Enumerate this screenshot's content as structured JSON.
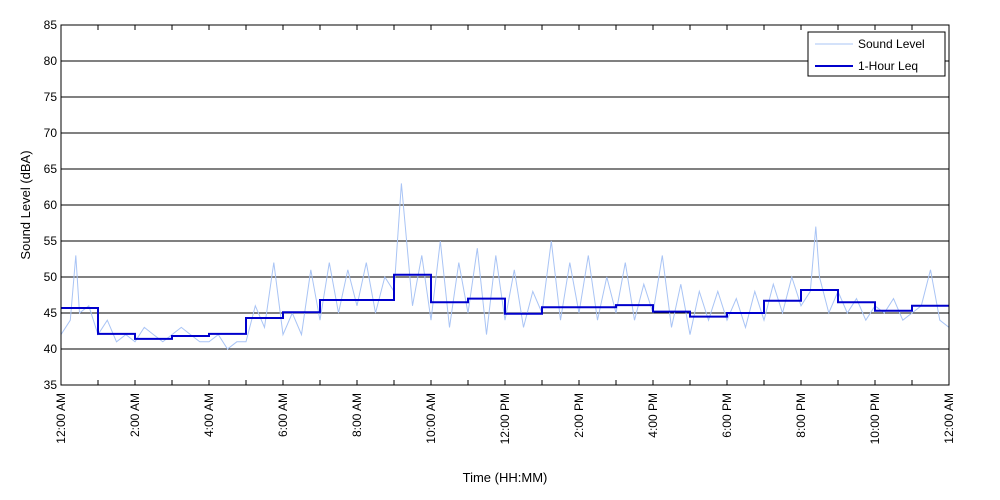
{
  "chart_data": {
    "type": "line",
    "xlabel": "Time (HH:MM)",
    "ylabel": "Sound Level (dBA)",
    "ylim": [
      35,
      85
    ],
    "yticks": [
      35,
      40,
      45,
      50,
      55,
      60,
      65,
      70,
      75,
      80,
      85
    ],
    "xlim": [
      0,
      24
    ],
    "x_tick_labels": [
      "12:00 AM",
      "2:00 AM",
      "4:00 AM",
      "6:00 AM",
      "8:00 AM",
      "10:00 AM",
      "12:00 PM",
      "2:00 PM",
      "4:00 PM",
      "6:00 PM",
      "8:00 PM",
      "10:00 PM",
      "12:00 AM"
    ],
    "grid": "horizontal",
    "legend_position": "top-right",
    "series": [
      {
        "name": "Sound Level",
        "style": "thin line",
        "color": "#a9c4f5",
        "x_hours": [
          0,
          0.25,
          0.4,
          0.5,
          0.75,
          1,
          1.25,
          1.5,
          1.75,
          2,
          2.25,
          2.5,
          2.75,
          3,
          3.25,
          3.5,
          3.75,
          4,
          4.25,
          4.5,
          4.75,
          5,
          5.25,
          5.5,
          5.75,
          6,
          6.25,
          6.5,
          6.75,
          7,
          7.25,
          7.5,
          7.75,
          8,
          8.25,
          8.5,
          8.75,
          9,
          9.2,
          9.5,
          9.75,
          10,
          10.25,
          10.5,
          10.75,
          11,
          11.25,
          11.5,
          11.75,
          12,
          12.25,
          12.5,
          12.75,
          13,
          13.25,
          13.5,
          13.75,
          14,
          14.25,
          14.5,
          14.75,
          15,
          15.25,
          15.5,
          15.75,
          16,
          16.25,
          16.5,
          16.75,
          17,
          17.25,
          17.5,
          17.75,
          18,
          18.25,
          18.5,
          18.75,
          19,
          19.25,
          19.5,
          19.75,
          20,
          20.25,
          20.4,
          20.5,
          20.75,
          21,
          21.25,
          21.5,
          21.75,
          22,
          22.25,
          22.5,
          22.75,
          23,
          23.25,
          23.5,
          23.75,
          24
        ],
        "values": [
          42,
          44,
          53,
          45,
          46,
          42,
          44,
          41,
          42,
          41,
          43,
          42,
          41,
          42,
          43,
          42,
          41,
          41,
          42,
          40,
          41,
          41,
          46,
          43,
          52,
          42,
          45,
          42,
          51,
          44,
          52,
          45,
          51,
          46,
          52,
          45,
          50,
          48,
          63,
          46,
          53,
          44,
          55,
          43,
          52,
          45,
          54,
          42,
          53,
          44,
          51,
          43,
          48,
          45,
          55,
          44,
          52,
          45,
          53,
          44,
          50,
          45,
          52,
          44,
          49,
          45,
          53,
          43,
          49,
          42,
          48,
          44,
          48,
          44,
          47,
          43,
          48,
          44,
          49,
          45,
          50,
          46,
          48,
          57,
          50,
          45,
          48,
          45,
          47,
          44,
          46,
          45,
          47,
          44,
          45,
          46,
          51,
          44,
          43
        ]
      },
      {
        "name": "1-Hour Leq",
        "style": "step",
        "color": "#0000cc",
        "x_hours": [
          0,
          1,
          2,
          3,
          4,
          5,
          6,
          7,
          8,
          9,
          10,
          11,
          12,
          13,
          14,
          15,
          16,
          17,
          18,
          19,
          20,
          21,
          22,
          23
        ],
        "values": [
          45.7,
          42.1,
          41.4,
          41.8,
          42.1,
          44.3,
          45.1,
          46.8,
          46.8,
          50.3,
          46.5,
          47.0,
          44.9,
          45.8,
          45.8,
          46.1,
          45.2,
          44.5,
          45.0,
          46.7,
          48.2,
          46.5,
          45.3,
          46.0
        ]
      }
    ]
  },
  "colors": {
    "background": "#ffffff",
    "grid": "#000000",
    "sound_level": "#a9c4f5",
    "leq": "#0000cc"
  }
}
